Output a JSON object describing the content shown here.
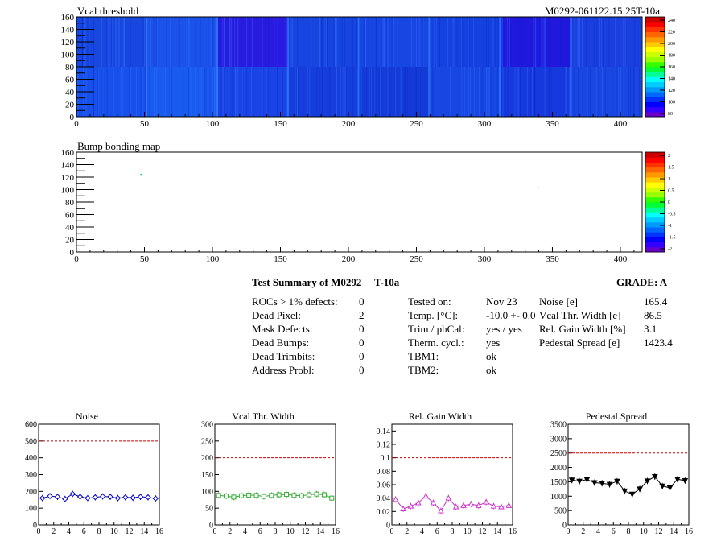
{
  "maps": [
    {
      "title": "Vcal threshold",
      "right_title": "M0292-061122.15:25T-10a",
      "x_ticks": [
        "0",
        "50",
        "100",
        "150",
        "200",
        "250",
        "300",
        "350",
        "400"
      ],
      "y_ticks": [
        "0",
        "20",
        "40",
        "60",
        "80",
        "100",
        "120",
        "140",
        "160"
      ],
      "palette": [
        "#6600cc",
        "#3300ff",
        "#0000ff",
        "#0033ff",
        "#0066ff",
        "#0099ff",
        "#00ccff",
        "#00ffff",
        "#00ff99",
        "#00ff33",
        "#33ff00",
        "#99ff00",
        "#ccff00",
        "#ffff00",
        "#ffcc00",
        "#ff9900",
        "#ff6600",
        "#ff3300",
        "#ff0000",
        "#cc0000"
      ],
      "colorbar_labels": [
        "240",
        "220",
        "200",
        "180",
        "160",
        "140",
        "120",
        "100",
        "80"
      ],
      "roc_tiles": {
        "top": [
          "#1847e0",
          "#1a52ea",
          "#2a1be0",
          "#1745df",
          "#1846e3",
          "#1541e0",
          "#2118de",
          "#1a3fde"
        ],
        "bottom": [
          "#1750ea",
          "#1a5bef",
          "#1a44e6",
          "#163edc",
          "#143bd8",
          "#1746e3",
          "#1639dd",
          "#1a47e2"
        ]
      }
    },
    {
      "title": "Bump bonding map",
      "x_ticks": [
        "0",
        "50",
        "100",
        "150",
        "200",
        "250",
        "300",
        "350",
        "400"
      ],
      "y_ticks": [
        "0",
        "20",
        "40",
        "60",
        "80",
        "100",
        "120",
        "140",
        "160"
      ],
      "palette": [
        "#6600cc",
        "#3300ff",
        "#0000ff",
        "#0033ff",
        "#0066ff",
        "#0099ff",
        "#00ccff",
        "#00ffff",
        "#00ff99",
        "#00ff33",
        "#33ff00",
        "#99ff00",
        "#ccff00",
        "#ffff00",
        "#ffcc00",
        "#ff9900",
        "#ff6600",
        "#ff3300",
        "#ff0000",
        "#cc0000"
      ],
      "colorbar_labels": [
        "2",
        "1.5",
        "1",
        "0.5",
        "0",
        "-0.5",
        "-1",
        "-1.5",
        "-2"
      ],
      "dead_pixels": [
        {
          "col": 47,
          "row": 125
        },
        {
          "col": 339,
          "row": 104
        }
      ]
    }
  ],
  "summary": {
    "title": "Test Summary of M0292",
    "temp_tag": "T-10a",
    "grade": "GRADE:  A",
    "col1": [
      {
        "label": "ROCs > 1% defects:",
        "value": "0"
      },
      {
        "label": "Dead Pixel:",
        "value": "2"
      },
      {
        "label": "Mask Defects:",
        "value": "0"
      },
      {
        "label": "Dead Bumps:",
        "value": "0"
      },
      {
        "label": "Dead Trimbits:",
        "value": "0"
      },
      {
        "label": "Address Probl:",
        "value": "0"
      }
    ],
    "col2": [
      {
        "label": "Tested on:",
        "value": "Nov 23"
      },
      {
        "label": "Temp. [°C]:",
        "value": "-10.0 +- 0.0"
      },
      {
        "label": "Trim / phCal:",
        "value": "yes / yes"
      },
      {
        "label": "Therm. cycl.:",
        "value": "yes"
      },
      {
        "label": "TBM1:",
        "value": "ok"
      },
      {
        "label": "TBM2:",
        "value": "ok"
      }
    ],
    "col3": [
      {
        "label": "Noise [e]",
        "value": "165.4"
      },
      {
        "label": "Vcal Thr. Width [e]",
        "value": "86.5"
      },
      {
        "label": "Rel. Gain Width [%]",
        "value": "3.1"
      },
      {
        "label": "Pedestal Spread [e]",
        "value": "1423.4"
      }
    ]
  },
  "chart_data": [
    {
      "type": "scatter",
      "title": "Noise",
      "x_ticks": [
        "0",
        "2",
        "4",
        "6",
        "8",
        "10",
        "12",
        "14",
        "16"
      ],
      "y_ticks": [
        "0",
        "100",
        "200",
        "300",
        "400",
        "500",
        "600"
      ],
      "xlim": [
        0,
        16
      ],
      "ylim": [
        0,
        600
      ],
      "threshold": 500,
      "color": "#0000cc",
      "marker": "diamond",
      "x": [
        0.5,
        1.5,
        2.5,
        3.5,
        4.5,
        5.5,
        6.5,
        7.5,
        8.5,
        9.5,
        10.5,
        11.5,
        12.5,
        13.5,
        14.5,
        15.5
      ],
      "y": [
        160,
        172,
        168,
        155,
        185,
        168,
        160,
        165,
        170,
        168,
        160,
        165,
        162,
        168,
        165,
        158
      ]
    },
    {
      "type": "scatter",
      "title": "Vcal Thr. Width",
      "x_ticks": [
        "0",
        "2",
        "4",
        "6",
        "8",
        "10",
        "12",
        "14",
        "16"
      ],
      "y_ticks": [
        "0",
        "50",
        "100",
        "150",
        "200",
        "250",
        "300"
      ],
      "xlim": [
        0,
        16
      ],
      "ylim": [
        0,
        300
      ],
      "threshold": 200,
      "color": "#33aa33",
      "marker": "square",
      "x": [
        0.5,
        1.5,
        2.5,
        3.5,
        4.5,
        5.5,
        6.5,
        7.5,
        8.5,
        9.5,
        10.5,
        11.5,
        12.5,
        13.5,
        14.5,
        15.5
      ],
      "y": [
        88,
        86,
        83,
        87,
        89,
        88,
        85,
        88,
        90,
        91,
        88,
        87,
        90,
        92,
        90,
        80
      ]
    },
    {
      "type": "line",
      "title": "Rel. Gain Width",
      "x_ticks": [
        "0",
        "2",
        "4",
        "6",
        "8",
        "10",
        "12",
        "14",
        "16"
      ],
      "y_ticks": [
        "0",
        "0.02",
        "0.04",
        "0.06",
        "0.08",
        "0.1",
        "0.12",
        "0.14"
      ],
      "xlim": [
        0,
        16
      ],
      "ylim": [
        0,
        0.15
      ],
      "threshold": 0.1,
      "color": "#cc33cc",
      "marker": "triangle-up",
      "x": [
        0.5,
        1.5,
        2.5,
        3.5,
        4.5,
        5.5,
        6.5,
        7.5,
        8.5,
        9.5,
        10.5,
        11.5,
        12.5,
        13.5,
        14.5,
        15.5
      ],
      "y": [
        0.038,
        0.024,
        0.028,
        0.033,
        0.043,
        0.033,
        0.021,
        0.04,
        0.027,
        0.029,
        0.031,
        0.029,
        0.034,
        0.028,
        0.027,
        0.029
      ]
    },
    {
      "type": "line",
      "title": "Pedestal Spread",
      "x_ticks": [
        "0",
        "2",
        "4",
        "6",
        "8",
        "10",
        "12",
        "14",
        "16"
      ],
      "y_ticks": [
        "0",
        "500",
        "1000",
        "1500",
        "2000",
        "2500",
        "3000",
        "3500"
      ],
      "xlim": [
        0,
        16
      ],
      "ylim": [
        0,
        3500
      ],
      "threshold": 2500,
      "color": "#000000",
      "marker": "triangle-down",
      "x": [
        0.5,
        1.5,
        2.5,
        3.5,
        4.5,
        5.5,
        6.5,
        7.5,
        8.5,
        9.5,
        10.5,
        11.5,
        12.5,
        13.5,
        14.5,
        15.5
      ],
      "y": [
        1560,
        1520,
        1580,
        1470,
        1450,
        1410,
        1520,
        1180,
        1070,
        1250,
        1530,
        1680,
        1350,
        1290,
        1590,
        1540
      ]
    }
  ]
}
